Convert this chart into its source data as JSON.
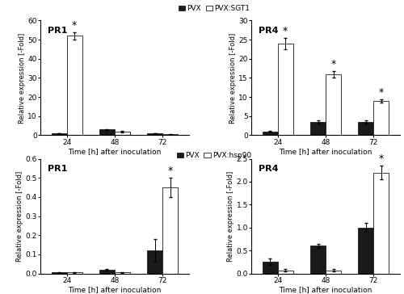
{
  "top_legend_label1": "PVX",
  "top_legend_label2_sgt1": "PVX:SGT1",
  "top_legend_label2_hsp90": "PVX:hsp90",
  "bar_color_black": "#1a1a1a",
  "bar_color_white": "#ffffff",
  "bar_edgecolor": "#1a1a1a",
  "time_points": [
    24,
    48,
    72
  ],
  "top_left": {
    "title": "PR1",
    "ylim": [
      0,
      60
    ],
    "yticks": [
      0,
      10,
      20,
      30,
      40,
      50,
      60
    ],
    "pvx_values": [
      1.0,
      3.0,
      1.0
    ],
    "pvx_errors": [
      0.1,
      0.3,
      0.1
    ],
    "sgt1_values": [
      52.0,
      2.0,
      0.5
    ],
    "sgt1_errors": [
      2.0,
      0.5,
      0.2
    ],
    "asterisks": [
      1,
      0,
      0
    ],
    "ylabel": "Relative expression [-Fold]"
  },
  "top_right": {
    "title": "PR4",
    "ylim": [
      0,
      30
    ],
    "yticks": [
      0,
      5,
      10,
      15,
      20,
      25,
      30
    ],
    "pvx_values": [
      1.0,
      3.5,
      3.5
    ],
    "pvx_errors": [
      0.1,
      0.4,
      0.4
    ],
    "sgt1_values": [
      24.0,
      16.0,
      9.0
    ],
    "sgt1_errors": [
      1.5,
      0.8,
      0.4
    ],
    "asterisks": [
      1,
      1,
      1
    ],
    "ylabel": "Relative expression [-Fold]"
  },
  "bottom_left": {
    "title": "PR1",
    "ylim": [
      0,
      0.6
    ],
    "yticks": [
      0.0,
      0.1,
      0.2,
      0.3,
      0.4,
      0.5,
      0.6
    ],
    "pvx_values": [
      0.005,
      0.02,
      0.12
    ],
    "pvx_errors": [
      0.001,
      0.005,
      0.06
    ],
    "hsp90_values": [
      0.005,
      0.005,
      0.45
    ],
    "hsp90_errors": [
      0.001,
      0.001,
      0.05
    ],
    "asterisks": [
      0,
      0,
      1
    ],
    "ylabel": "Relative expression [-Fold]"
  },
  "bottom_right": {
    "title": "PR4",
    "ylim": [
      0,
      2.5
    ],
    "yticks": [
      0.0,
      0.5,
      1.0,
      1.5,
      2.0,
      2.5
    ],
    "pvx_values": [
      0.25,
      0.6,
      1.0
    ],
    "pvx_errors": [
      0.07,
      0.05,
      0.1
    ],
    "hsp90_values": [
      0.07,
      0.07,
      2.2
    ],
    "hsp90_errors": [
      0.02,
      0.02,
      0.15
    ],
    "asterisks": [
      0,
      0,
      1
    ],
    "ylabel": "Relative expression [-Fold]"
  },
  "xlabel": "Time [h] after inoculation",
  "bar_width": 0.32,
  "figsize": [
    5.0,
    3.64
  ],
  "dpi": 100,
  "bg_color": "#ffffff"
}
